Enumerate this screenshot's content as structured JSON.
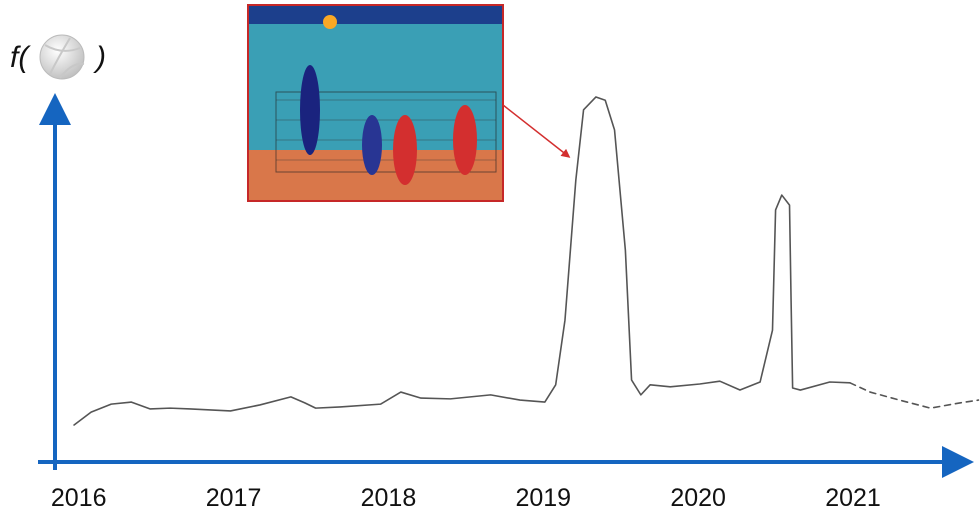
{
  "chart_data": {
    "type": "line",
    "y_label_prefix": "f(",
    "y_label_suffix": ")",
    "x": [
      2015.97,
      2016.08,
      2016.21,
      2016.34,
      2016.46,
      2016.59,
      2016.72,
      2016.98,
      2017.17,
      2017.37,
      2017.46,
      2017.53,
      2017.69,
      2017.95,
      2018.08,
      2018.21,
      2018.4,
      2018.66,
      2018.85,
      2019.01,
      2019.08,
      2019.14,
      2019.21,
      2019.26,
      2019.34,
      2019.4,
      2019.46,
      2019.53,
      2019.57,
      2019.63,
      2019.69,
      2019.82,
      2020.01,
      2020.14,
      2020.27,
      2020.4,
      2020.48,
      2020.5,
      2020.54,
      2020.59,
      2020.6,
      2020.61,
      2020.66,
      2020.85,
      2020.98
    ],
    "values": [
      9.2,
      12.4,
      14.4,
      14.9,
      13.2,
      13.4,
      13.2,
      12.7,
      14.2,
      16.2,
      14.7,
      13.4,
      13.7,
      14.4,
      17.4,
      15.9,
      15.7,
      16.7,
      15.4,
      14.9,
      19.2,
      35.3,
      70.1,
      87.6,
      90.8,
      90.0,
      82.6,
      52.7,
      20.4,
      16.7,
      19.2,
      18.7,
      19.4,
      20.1,
      17.9,
      19.9,
      32.8,
      62.7,
      66.4,
      63.9,
      40.3,
      18.4,
      17.9,
      19.9,
      19.7
    ],
    "x_dashed": [
      2020.98,
      2021.11,
      2021.3,
      2021.5,
      2021.69,
      2021.81
    ],
    "values_dashed": [
      19.7,
      17.4,
      15.4,
      13.4,
      14.7,
      15.4
    ],
    "color": "#555555",
    "xlim": [
      2015.75,
      2021.82
    ],
    "ylim": [
      0,
      100
    ],
    "xticks": [
      2016,
      2017,
      2018,
      2019,
      2020,
      2021
    ],
    "axis_color": "#1565c0"
  }
}
